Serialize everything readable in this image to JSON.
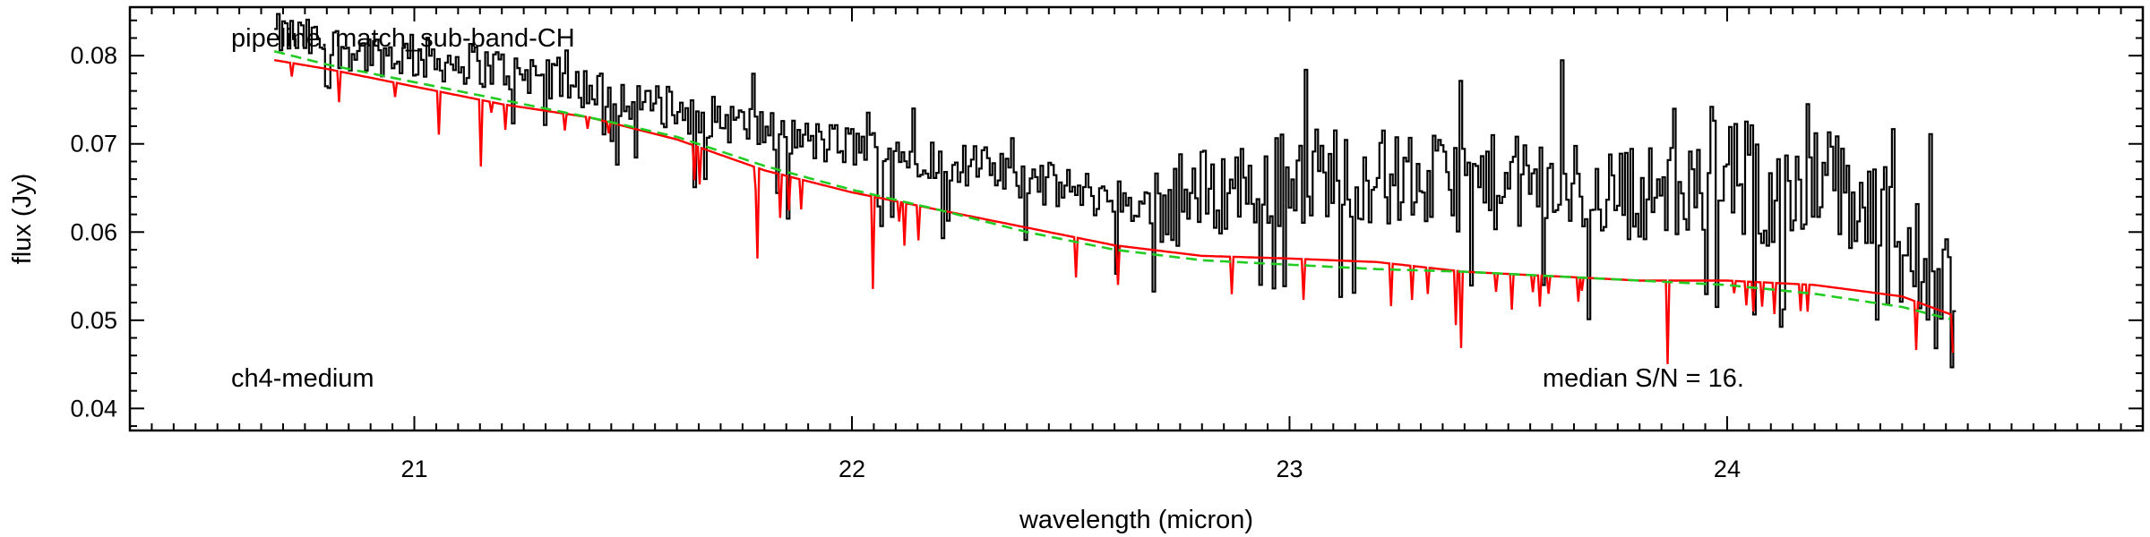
{
  "chart_data": {
    "type": "line",
    "xlabel": "wavelength (micron)",
    "ylabel": "flux (Jy)",
    "xlim": [
      20.35,
      24.95
    ],
    "ylim": [
      0.0375,
      0.0855
    ],
    "x_ticks": [
      21,
      22,
      23,
      24
    ],
    "x_tick_labels": [
      "21",
      "22",
      "23",
      "24"
    ],
    "y_ticks": [
      0.04,
      0.05,
      0.06,
      0.07,
      0.08
    ],
    "y_tick_labels": [
      "0.04",
      "0.05",
      "0.06",
      "0.07",
      "0.08"
    ],
    "grid": false,
    "annotations": {
      "pipeline": "pipeline, match_sub-band-CH",
      "band": "ch4-medium",
      "snr": "median S/N = 16."
    },
    "series": [
      {
        "color": "#000000",
        "style": "steps",
        "x_range": [
          20.68,
          24.52
        ],
        "x": [
          20.7,
          20.9,
          21.1,
          21.3,
          21.5,
          21.7,
          21.9,
          22.1,
          22.3,
          22.5,
          22.7,
          22.9,
          23.1,
          23.3,
          23.5,
          23.7,
          23.9,
          24.1,
          24.3,
          24.5
        ],
        "y": [
          0.082,
          0.08,
          0.079,
          0.0775,
          0.0745,
          0.0725,
          0.07,
          0.069,
          0.067,
          0.0645,
          0.0625,
          0.065,
          0.0665,
          0.065,
          0.065,
          0.064,
          0.064,
          0.065,
          0.063,
          0.051
        ]
      },
      {
        "color": "#ff0000",
        "style": "line",
        "x": [
          20.68,
          20.8,
          21.0,
          21.2,
          21.4,
          21.6,
          21.8,
          22.0,
          22.2,
          22.4,
          22.6,
          22.8,
          23.0,
          23.2,
          23.4,
          23.6,
          23.8,
          24.0,
          24.2,
          24.4,
          24.52
        ],
        "y": [
          0.0795,
          0.0785,
          0.0765,
          0.0745,
          0.073,
          0.0705,
          0.067,
          0.0645,
          0.0625,
          0.0605,
          0.0585,
          0.0573,
          0.057,
          0.0566,
          0.0555,
          0.055,
          0.0545,
          0.0545,
          0.054,
          0.0527,
          0.0505
        ]
      },
      {
        "color": "#22cc22",
        "style": "dashed",
        "x": [
          20.68,
          20.8,
          21.0,
          21.2,
          21.4,
          21.6,
          21.8,
          22.0,
          22.2,
          22.4,
          22.6,
          22.8,
          23.0,
          23.2,
          23.4,
          23.6,
          23.8,
          24.0,
          24.2,
          24.4,
          24.52
        ],
        "y": [
          0.0805,
          0.079,
          0.077,
          0.075,
          0.073,
          0.0708,
          0.0675,
          0.0648,
          0.0625,
          0.06,
          0.058,
          0.0568,
          0.0563,
          0.0558,
          0.0555,
          0.055,
          0.0545,
          0.054,
          0.053,
          0.0515,
          0.05
        ]
      }
    ]
  }
}
